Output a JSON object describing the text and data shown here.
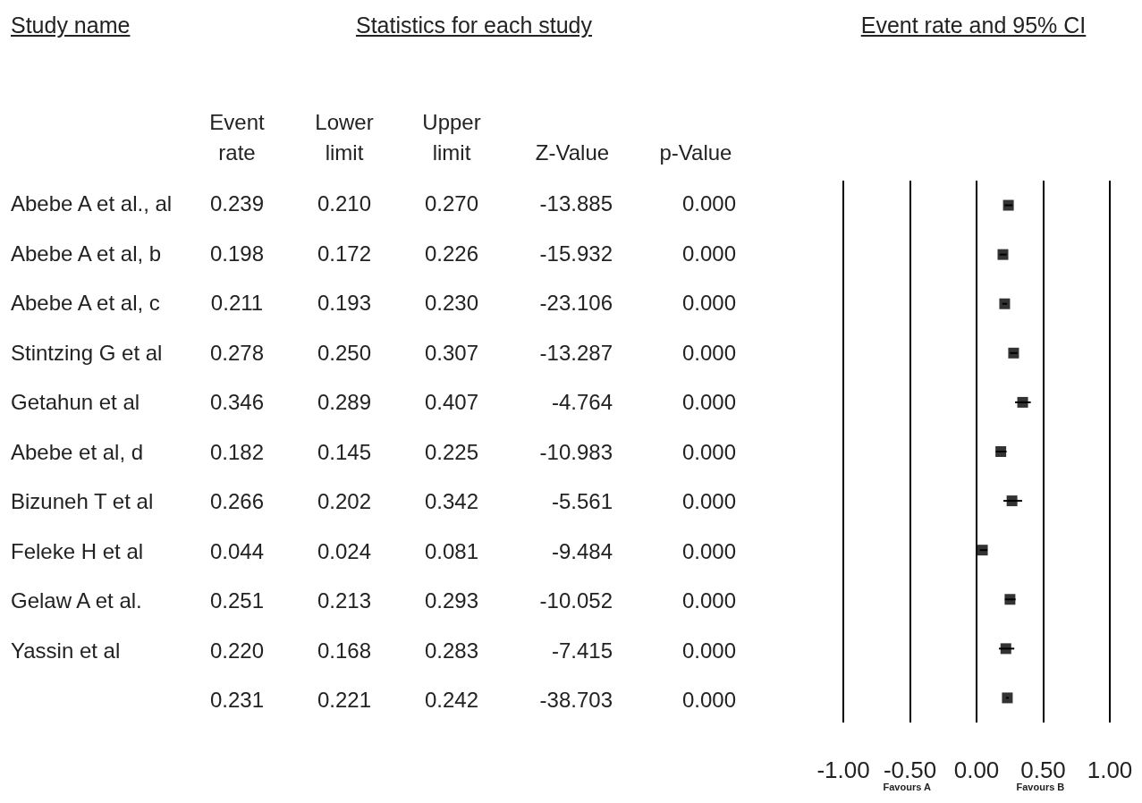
{
  "chart_data": [
    {
      "type": "other",
      "title": "Statistics for each study",
      "ylabel": "Study name",
      "categories": [
        "Event rate",
        "Lower limit",
        "Upper limit",
        "Z-Value",
        "p-Value"
      ],
      "y_categories": [
        "Abebe A et al., al",
        "Abebe A et al, b",
        "Abebe A et al, c",
        "Stintzing G et al",
        "Getahun et al",
        "Abebe et al, d",
        "Bizuneh T et al",
        "Feleke H et al",
        "Gelaw  A et al.",
        "Yassin et al",
        null
      ],
      "cells": [
        [
          "0.239",
          "0.210",
          "0.270",
          "-13.885",
          "0.000"
        ],
        [
          "0.198",
          "0.172",
          "0.226",
          "-15.932",
          "0.000"
        ],
        [
          "0.211",
          "0.193",
          "0.230",
          "-23.106",
          "0.000"
        ],
        [
          "0.278",
          "0.250",
          "0.307",
          "-13.287",
          "0.000"
        ],
        [
          "0.346",
          "0.289",
          "0.407",
          "-4.764",
          "0.000"
        ],
        [
          "0.182",
          "0.145",
          "0.225",
          "-10.983",
          "0.000"
        ],
        [
          "0.266",
          "0.202",
          "0.342",
          "-5.561",
          "0.000"
        ],
        [
          "0.044",
          "0.024",
          "0.081",
          "-9.484",
          "0.000"
        ],
        [
          "0.251",
          "0.213",
          "0.293",
          "-10.052",
          "0.000"
        ],
        [
          "0.220",
          "0.168",
          "0.283",
          "-7.415",
          "0.000"
        ],
        [
          "0.231",
          "0.221",
          "0.242",
          "-38.703",
          "0.000"
        ]
      ]
    },
    {
      "type": "scatter",
      "title": "Event rate and 95% CI",
      "orientation": "horizontal",
      "categories": [
        null,
        null,
        null,
        null,
        null,
        null,
        null,
        null,
        null,
        null,
        null
      ],
      "values": [
        0.239,
        0.198,
        0.211,
        0.278,
        0.346,
        0.182,
        0.266,
        0.044,
        0.251,
        0.22,
        0.231
      ],
      "errors": [
        [
          0.21,
          0.27
        ],
        [
          0.172,
          0.226
        ],
        [
          0.193,
          0.23
        ],
        [
          0.25,
          0.307
        ],
        [
          0.289,
          0.407
        ],
        [
          0.145,
          0.225
        ],
        [
          0.202,
          0.342
        ],
        [
          0.024,
          0.081
        ],
        [
          0.213,
          0.293
        ],
        [
          0.168,
          0.283
        ],
        [
          0.221,
          0.242
        ]
      ],
      "xlim": [
        -1,
        1
      ],
      "xticks": [
        {
          "value": -1,
          "label": "-1.00"
        },
        {
          "value": -0.5,
          "label": "-0.50"
        },
        {
          "value": 0,
          "label": "0.00"
        },
        {
          "value": 0.5,
          "label": "0.50"
        },
        {
          "value": 1,
          "label": "1.00"
        }
      ],
      "grid": "x",
      "tick_labels": "x",
      "marker": "square",
      "annotations": [
        "Favours A",
        "Favours B"
      ]
    }
  ]
}
